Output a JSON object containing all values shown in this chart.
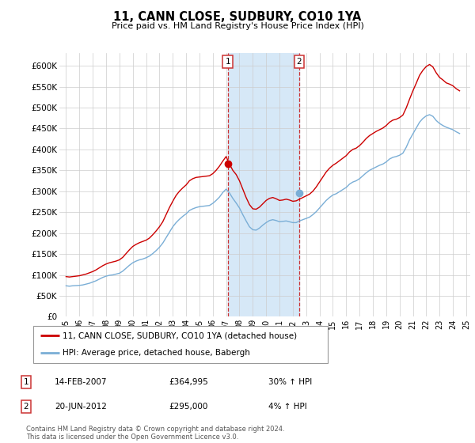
{
  "title": "11, CANN CLOSE, SUDBURY, CO10 1YA",
  "subtitle": "Price paid vs. HM Land Registry's House Price Index (HPI)",
  "ylabel_ticks": [
    "£0",
    "£50K",
    "£100K",
    "£150K",
    "£200K",
    "£250K",
    "£300K",
    "£350K",
    "£400K",
    "£450K",
    "£500K",
    "£550K",
    "£600K"
  ],
  "ytick_values": [
    0,
    50000,
    100000,
    150000,
    200000,
    250000,
    300000,
    350000,
    400000,
    450000,
    500000,
    550000,
    600000
  ],
  "ylim": [
    0,
    630000
  ],
  "sale1_x": 2007.12,
  "sale1_price": 364995,
  "sale2_x": 2012.47,
  "sale2_price": 295000,
  "shade_color": "#d6e8f7",
  "red_line_color": "#cc0000",
  "blue_line_color": "#7aaed6",
  "sale1_label": "1",
  "sale2_label": "2",
  "legend_line1": "11, CANN CLOSE, SUDBURY, CO10 1YA (detached house)",
  "legend_line2": "HPI: Average price, detached house, Babergh",
  "table_rows": [
    {
      "num": "1",
      "date": "14-FEB-2007",
      "price": "£364,995",
      "pct": "30% ↑ HPI"
    },
    {
      "num": "2",
      "date": "20-JUN-2012",
      "price": "£295,000",
      "pct": "4% ↑ HPI"
    }
  ],
  "footer_text": "Contains HM Land Registry data © Crown copyright and database right 2024.\nThis data is licensed under the Open Government Licence v3.0.",
  "years": [
    1995,
    1995.25,
    1995.5,
    1995.75,
    1996,
    1996.25,
    1996.5,
    1996.75,
    1997,
    1997.25,
    1997.5,
    1997.75,
    1998,
    1998.25,
    1998.5,
    1998.75,
    1999,
    1999.25,
    1999.5,
    1999.75,
    2000,
    2000.25,
    2000.5,
    2000.75,
    2001,
    2001.25,
    2001.5,
    2001.75,
    2002,
    2002.25,
    2002.5,
    2002.75,
    2003,
    2003.25,
    2003.5,
    2003.75,
    2004,
    2004.25,
    2004.5,
    2004.75,
    2005,
    2005.25,
    2005.5,
    2005.75,
    2006,
    2006.25,
    2006.5,
    2006.75,
    2007,
    2007.25,
    2007.5,
    2007.75,
    2008,
    2008.25,
    2008.5,
    2008.75,
    2009,
    2009.25,
    2009.5,
    2009.75,
    2010,
    2010.25,
    2010.5,
    2010.75,
    2011,
    2011.25,
    2011.5,
    2011.75,
    2012,
    2012.25,
    2012.5,
    2012.75,
    2013,
    2013.25,
    2013.5,
    2013.75,
    2014,
    2014.25,
    2014.5,
    2014.75,
    2015,
    2015.25,
    2015.5,
    2015.75,
    2016,
    2016.25,
    2016.5,
    2016.75,
    2017,
    2017.25,
    2017.5,
    2017.75,
    2018,
    2018.25,
    2018.5,
    2018.75,
    2019,
    2019.25,
    2019.5,
    2019.75,
    2020,
    2020.25,
    2020.5,
    2020.75,
    2021,
    2021.25,
    2021.5,
    2021.75,
    2022,
    2022.25,
    2022.5,
    2022.75,
    2023,
    2023.25,
    2023.5,
    2023.75,
    2024,
    2024.25,
    2024.5
  ],
  "red_vals": [
    96000,
    95000,
    96000,
    97000,
    98000,
    100000,
    102000,
    105000,
    108000,
    112000,
    117000,
    122000,
    126000,
    129000,
    131000,
    133000,
    136000,
    142000,
    151000,
    160000,
    168000,
    173000,
    177000,
    180000,
    183000,
    188000,
    196000,
    205000,
    215000,
    227000,
    244000,
    261000,
    276000,
    290000,
    300000,
    308000,
    315000,
    325000,
    330000,
    333000,
    334000,
    335000,
    336000,
    337000,
    342000,
    350000,
    360000,
    372000,
    383000,
    365000,
    350000,
    340000,
    325000,
    305000,
    285000,
    268000,
    258000,
    257000,
    262000,
    270000,
    278000,
    283000,
    285000,
    282000,
    278000,
    279000,
    281000,
    279000,
    276000,
    277000,
    281000,
    285000,
    289000,
    293000,
    300000,
    310000,
    322000,
    334000,
    346000,
    355000,
    362000,
    367000,
    373000,
    379000,
    385000,
    394000,
    400000,
    403000,
    409000,
    417000,
    426000,
    433000,
    438000,
    443000,
    447000,
    451000,
    457000,
    465000,
    470000,
    472000,
    476000,
    482000,
    499000,
    520000,
    540000,
    558000,
    577000,
    589000,
    598000,
    603000,
    597000,
    583000,
    572000,
    566000,
    559000,
    556000,
    552000,
    545000,
    540000
  ],
  "blue_vals": [
    74000,
    73000,
    74000,
    74500,
    75000,
    76000,
    78000,
    80000,
    83000,
    86000,
    90000,
    94000,
    97000,
    99000,
    100000,
    102000,
    104000,
    109000,
    116000,
    123000,
    129000,
    133000,
    136000,
    138000,
    141000,
    145000,
    151000,
    158000,
    166000,
    176000,
    189000,
    202000,
    215000,
    225000,
    233000,
    240000,
    246000,
    254000,
    258000,
    261000,
    263000,
    264000,
    265000,
    266000,
    271000,
    278000,
    286000,
    297000,
    305000,
    296000,
    283000,
    272000,
    260000,
    244000,
    229000,
    215000,
    208000,
    207000,
    212000,
    219000,
    225000,
    230000,
    232000,
    230000,
    227000,
    228000,
    229000,
    227000,
    225000,
    225000,
    229000,
    232000,
    235000,
    238000,
    244000,
    251000,
    260000,
    269000,
    278000,
    285000,
    291000,
    294000,
    299000,
    304000,
    309000,
    317000,
    322000,
    325000,
    330000,
    337000,
    344000,
    350000,
    354000,
    358000,
    362000,
    365000,
    370000,
    377000,
    381000,
    383000,
    386000,
    391000,
    405000,
    423000,
    437000,
    451000,
    465000,
    474000,
    480000,
    483000,
    479000,
    469000,
    462000,
    457000,
    453000,
    450000,
    447000,
    442000,
    438000
  ],
  "xlim": [
    1994.5,
    2025.3
  ],
  "xticks": [
    1995,
    1996,
    1997,
    1998,
    1999,
    2000,
    2001,
    2002,
    2003,
    2004,
    2005,
    2006,
    2007,
    2008,
    2009,
    2010,
    2011,
    2012,
    2013,
    2014,
    2015,
    2016,
    2017,
    2018,
    2019,
    2020,
    2021,
    2022,
    2023,
    2024,
    2025
  ]
}
